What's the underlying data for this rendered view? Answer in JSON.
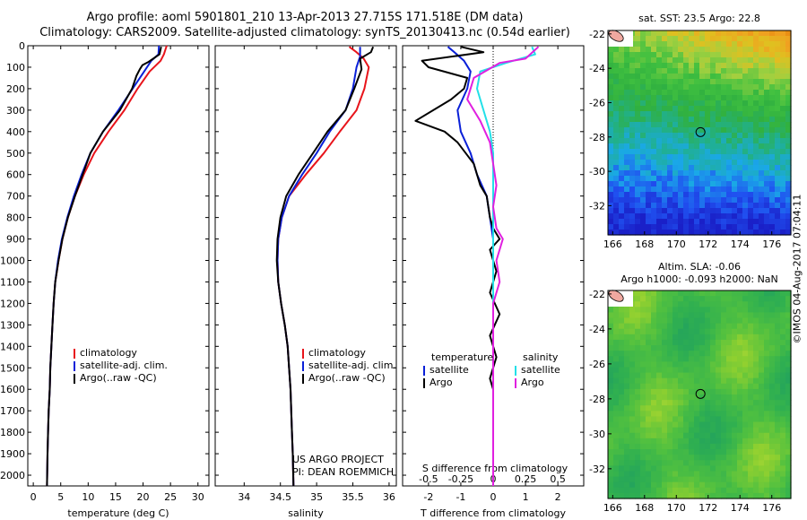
{
  "titles": {
    "line1": "Argo profile: aoml 5901801_210 13-Apr-2013 27.715S 171.518E (DM data)",
    "line2": "Climatology: CARS2009. Satellite-adjusted climatology: synTS_20130413.nc (0.54d earlier)"
  },
  "credit": [
    "US ARGO PROJECT",
    "PI: DEAN ROEMMICH"
  ],
  "imos_stamp": "©IMOS 04-Aug-2017 07:04:11",
  "colors": {
    "climatology": "#e8141b",
    "satellite": "#0a20d8",
    "argo": "#000000",
    "sat_salinity": "#22e0e8",
    "argo_salinity": "#e020e0"
  },
  "chart_data": [
    {
      "type": "line",
      "id": "temperature",
      "xlabel": "temperature (deg C)",
      "xlim": [
        -1,
        32
      ],
      "xticks": [
        0,
        5,
        10,
        15,
        20,
        25,
        30
      ],
      "ylim": [
        0,
        2050
      ],
      "yticks": [
        0,
        100,
        200,
        300,
        400,
        500,
        600,
        700,
        800,
        900,
        1000,
        1100,
        1200,
        1300,
        1400,
        1500,
        1600,
        1700,
        1800,
        1900,
        2000
      ],
      "legend": [
        "climatology",
        "satellite-adj. clim.",
        "Argo(..raw -QC)"
      ],
      "series": [
        {
          "name": "climatology",
          "color": "#e8141b",
          "points": [
            [
              24.3,
              0
            ],
            [
              23.8,
              40
            ],
            [
              23.2,
              70
            ],
            [
              21.2,
              120
            ],
            [
              19.0,
              200
            ],
            [
              16.6,
              300
            ],
            [
              13.7,
              400
            ],
            [
              11.1,
              500
            ],
            [
              9.2,
              600
            ],
            [
              7.6,
              700
            ],
            [
              6.3,
              800
            ],
            [
              5.3,
              900
            ],
            [
              4.6,
              1000
            ],
            [
              4.0,
              1100
            ],
            [
              3.7,
              1200
            ],
            [
              3.5,
              1300
            ],
            [
              3.3,
              1400
            ],
            [
              3.1,
              1500
            ],
            [
              3.0,
              1600
            ],
            [
              2.8,
              1700
            ],
            [
              2.7,
              1800
            ],
            [
              2.6,
              1900
            ],
            [
              2.5,
              2050
            ]
          ]
        },
        {
          "name": "satellite-adj. clim.",
          "color": "#0a20d8",
          "points": [
            [
              22.9,
              0
            ],
            [
              22.8,
              40
            ],
            [
              21.5,
              70
            ],
            [
              20.2,
              120
            ],
            [
              18.1,
              200
            ],
            [
              15.5,
              300
            ],
            [
              12.7,
              400
            ],
            [
              10.4,
              500
            ],
            [
              8.8,
              600
            ],
            [
              7.4,
              700
            ],
            [
              6.2,
              800
            ],
            [
              5.2,
              900
            ],
            [
              4.5,
              1000
            ],
            [
              4.0,
              1100
            ],
            [
              3.7,
              1200
            ],
            [
              3.5,
              1300
            ],
            [
              3.3,
              1400
            ],
            [
              3.1,
              1500
            ],
            [
              3.0,
              1600
            ],
            [
              2.8,
              1700
            ],
            [
              2.7,
              1800
            ],
            [
              2.6,
              1900
            ],
            [
              2.5,
              2050
            ]
          ]
        },
        {
          "name": "Argo(..raw -QC)",
          "color": "#000000",
          "points": [
            [
              23.3,
              5
            ],
            [
              23.0,
              40
            ],
            [
              21.0,
              75
            ],
            [
              19.9,
              90
            ],
            [
              19.4,
              110
            ],
            [
              18.8,
              140
            ],
            [
              18.0,
              200
            ],
            [
              15.8,
              300
            ],
            [
              12.7,
              400
            ],
            [
              10.4,
              500
            ],
            [
              9.0,
              600
            ],
            [
              7.6,
              700
            ],
            [
              6.3,
              800
            ],
            [
              5.3,
              900
            ],
            [
              4.6,
              1000
            ],
            [
              4.0,
              1100
            ],
            [
              3.7,
              1200
            ],
            [
              3.5,
              1300
            ],
            [
              3.3,
              1400
            ],
            [
              3.1,
              1500
            ],
            [
              3.0,
              1600
            ],
            [
              2.8,
              1700
            ],
            [
              2.7,
              1800
            ],
            [
              2.6,
              1900
            ],
            [
              2.5,
              2050
            ]
          ]
        }
      ]
    },
    {
      "type": "line",
      "id": "salinity",
      "xlabel": "salinity",
      "xlim": [
        33.6,
        36.1
      ],
      "xticks": [
        34,
        34.5,
        35,
        35.5,
        36
      ],
      "xticklabels": [
        "34",
        "34.5",
        "35",
        "35.5",
        "36"
      ],
      "ylim": [
        0,
        2050
      ],
      "legend": [
        "climatology",
        "satellite-adj. clim.",
        "Argo(..raw -QC)"
      ],
      "series": [
        {
          "name": "climatology",
          "color": "#e8141b",
          "points": [
            [
              35.45,
              5
            ],
            [
              35.55,
              30
            ],
            [
              35.65,
              60
            ],
            [
              35.72,
              100
            ],
            [
              35.66,
              200
            ],
            [
              35.55,
              300
            ],
            [
              35.32,
              400
            ],
            [
              35.1,
              500
            ],
            [
              34.85,
              600
            ],
            [
              34.62,
              700
            ],
            [
              34.52,
              800
            ],
            [
              34.47,
              900
            ],
            [
              34.46,
              1000
            ],
            [
              34.47,
              1100
            ],
            [
              34.51,
              1200
            ],
            [
              34.56,
              1300
            ],
            [
              34.6,
              1400
            ],
            [
              34.62,
              1500
            ],
            [
              34.64,
              1600
            ],
            [
              34.65,
              1700
            ],
            [
              34.66,
              1800
            ],
            [
              34.67,
              1900
            ],
            [
              34.68,
              2050
            ]
          ]
        },
        {
          "name": "satellite-adj. clim.",
          "color": "#0a20d8",
          "points": [
            [
              35.6,
              5
            ],
            [
              35.6,
              50
            ],
            [
              35.55,
              100
            ],
            [
              35.5,
              200
            ],
            [
              35.4,
              300
            ],
            [
              35.18,
              400
            ],
            [
              35.0,
              500
            ],
            [
              34.8,
              600
            ],
            [
              34.62,
              700
            ],
            [
              34.52,
              800
            ],
            [
              34.47,
              900
            ],
            [
              34.46,
              1000
            ],
            [
              34.47,
              1100
            ],
            [
              34.51,
              1200
            ],
            [
              34.56,
              1300
            ],
            [
              34.6,
              1400
            ],
            [
              34.62,
              1500
            ],
            [
              34.64,
              1600
            ],
            [
              34.65,
              1700
            ],
            [
              34.66,
              1800
            ],
            [
              34.67,
              1900
            ],
            [
              34.68,
              2050
            ]
          ]
        },
        {
          "name": "Argo(..raw -QC)",
          "color": "#000000",
          "points": [
            [
              35.78,
              5
            ],
            [
              35.75,
              30
            ],
            [
              35.6,
              60
            ],
            [
              35.62,
              110
            ],
            [
              35.52,
              200
            ],
            [
              35.4,
              300
            ],
            [
              35.15,
              400
            ],
            [
              34.95,
              500
            ],
            [
              34.75,
              600
            ],
            [
              34.58,
              700
            ],
            [
              34.5,
              800
            ],
            [
              34.46,
              900
            ],
            [
              34.45,
              1000
            ],
            [
              34.47,
              1100
            ],
            [
              34.51,
              1200
            ],
            [
              34.56,
              1300
            ],
            [
              34.6,
              1400
            ],
            [
              34.62,
              1500
            ],
            [
              34.64,
              1600
            ],
            [
              34.65,
              1700
            ],
            [
              34.66,
              1800
            ],
            [
              34.67,
              1900
            ],
            [
              34.68,
              2050
            ]
          ]
        }
      ]
    },
    {
      "type": "line",
      "id": "differences",
      "xlabel_top": "S difference from climatology",
      "xlabel": "T difference from climatology",
      "xlim": [
        -2.8,
        2.8
      ],
      "xticks_T": [
        -2,
        -1,
        0,
        1,
        2
      ],
      "xticks_S": [
        -0.5,
        -0.25,
        0,
        0.25,
        0.5
      ],
      "xticklabels_S": [
        "-0.5",
        "-0.25",
        "0",
        "0.25",
        "0.5"
      ],
      "ylim": [
        0,
        2050
      ],
      "legend_temperature": {
        "title": "temperature",
        "items": [
          "satellite",
          "Argo"
        ]
      },
      "legend_salinity": {
        "title": "salinity",
        "items": [
          "satellite",
          "Argo"
        ]
      },
      "series": [
        {
          "name": "temperature satellite",
          "color": "#0a20d8",
          "points": [
            [
              -1.4,
              5
            ],
            [
              -1.2,
              30
            ],
            [
              -0.9,
              70
            ],
            [
              -0.7,
              120
            ],
            [
              -0.8,
              200
            ],
            [
              -1.1,
              300
            ],
            [
              -1.0,
              400
            ],
            [
              -0.7,
              500
            ],
            [
              -0.5,
              600
            ],
            [
              -0.2,
              700
            ],
            [
              -0.1,
              800
            ],
            [
              0,
              900
            ],
            [
              0,
              1000
            ],
            [
              0,
              1200
            ],
            [
              0,
              1400
            ],
            [
              0,
              1600
            ],
            [
              0,
              1800
            ],
            [
              0,
              2050
            ]
          ]
        },
        {
          "name": "temperature Argo",
          "color": "#000000",
          "points": [
            [
              -1.0,
              5
            ],
            [
              -0.3,
              30
            ],
            [
              -2.2,
              70
            ],
            [
              -2.0,
              100
            ],
            [
              -0.8,
              150
            ],
            [
              -0.9,
              200
            ],
            [
              -1.3,
              250
            ],
            [
              -2.4,
              350
            ],
            [
              -1.5,
              400
            ],
            [
              -1.1,
              450
            ],
            [
              -0.6,
              550
            ],
            [
              -0.4,
              650
            ],
            [
              -0.2,
              700
            ],
            [
              -0.1,
              800
            ],
            [
              0.0,
              850
            ],
            [
              0.2,
              900
            ],
            [
              -0.1,
              950
            ],
            [
              0.1,
              1050
            ],
            [
              -0.1,
              1150
            ],
            [
              0.2,
              1250
            ],
            [
              -0.1,
              1350
            ],
            [
              0.1,
              1450
            ],
            [
              -0.1,
              1550
            ],
            [
              0,
              1600
            ],
            [
              0,
              1800
            ],
            [
              0,
              2050
            ]
          ]
        },
        {
          "name": "salinity satellite",
          "color": "#22e0e8",
          "points": [
            [
              1.2,
              5
            ],
            [
              1.3,
              40
            ],
            [
              0.4,
              80
            ],
            [
              -0.4,
              120
            ],
            [
              -0.5,
              200
            ],
            [
              -0.3,
              300
            ],
            [
              -0.1,
              400
            ],
            [
              0,
              500
            ],
            [
              0,
              700
            ],
            [
              0,
              900
            ],
            [
              0,
              1100
            ],
            [
              0,
              1300
            ],
            [
              0,
              1500
            ],
            [
              0,
              1700
            ],
            [
              0,
              1900
            ],
            [
              0,
              2050
            ]
          ]
        },
        {
          "name": "salinity Argo",
          "color": "#e020e0",
          "points": [
            [
              1.4,
              5
            ],
            [
              1.0,
              60
            ],
            [
              0.2,
              80
            ],
            [
              -0.6,
              150
            ],
            [
              -0.8,
              250
            ],
            [
              -0.4,
              350
            ],
            [
              -0.1,
              450
            ],
            [
              0,
              550
            ],
            [
              0.1,
              650
            ],
            [
              0,
              750
            ],
            [
              0.1,
              850
            ],
            [
              0.3,
              900
            ],
            [
              0.1,
              1000
            ],
            [
              0.2,
              1100
            ],
            [
              0,
              1200
            ],
            [
              0,
              1400
            ],
            [
              0,
              1600
            ],
            [
              0,
              2050
            ]
          ]
        }
      ]
    },
    {
      "type": "heatmap",
      "id": "sst_map",
      "title": "sat. SST: 23.5  Argo: 22.8",
      "xlim": [
        165.7,
        177.2
      ],
      "ylim": [
        -33.7,
        -21.8
      ],
      "xticks": [
        166,
        168,
        170,
        172,
        174,
        176
      ],
      "yticks": [
        -22,
        -24,
        -26,
        -28,
        -30,
        -32
      ],
      "marker": {
        "lon": 171.518,
        "lat": -27.715
      },
      "colormap": [
        "#ffffff",
        "#1a20c8",
        "#2050f0",
        "#1aa8e8",
        "#20b090",
        "#30b040",
        "#40c040",
        "#a0d040",
        "#e0c020",
        "#f0a020",
        "#e88a10"
      ]
    },
    {
      "type": "heatmap",
      "id": "sla_map",
      "title": "Altim. SLA: -0.06",
      "subtitle": "Argo h1000: -0.093  h2000: NaN",
      "xlim": [
        165.7,
        177.2
      ],
      "ylim": [
        -33.7,
        -21.8
      ],
      "xticks": [
        166,
        168,
        170,
        172,
        174,
        176
      ],
      "yticks": [
        -22,
        -24,
        -26,
        -28,
        -30,
        -32
      ],
      "marker": {
        "lon": 171.518,
        "lat": -27.715
      },
      "colormap": [
        "#20a060",
        "#30b050",
        "#50c040",
        "#90d030",
        "#c8e040",
        "#e8e060"
      ]
    }
  ]
}
